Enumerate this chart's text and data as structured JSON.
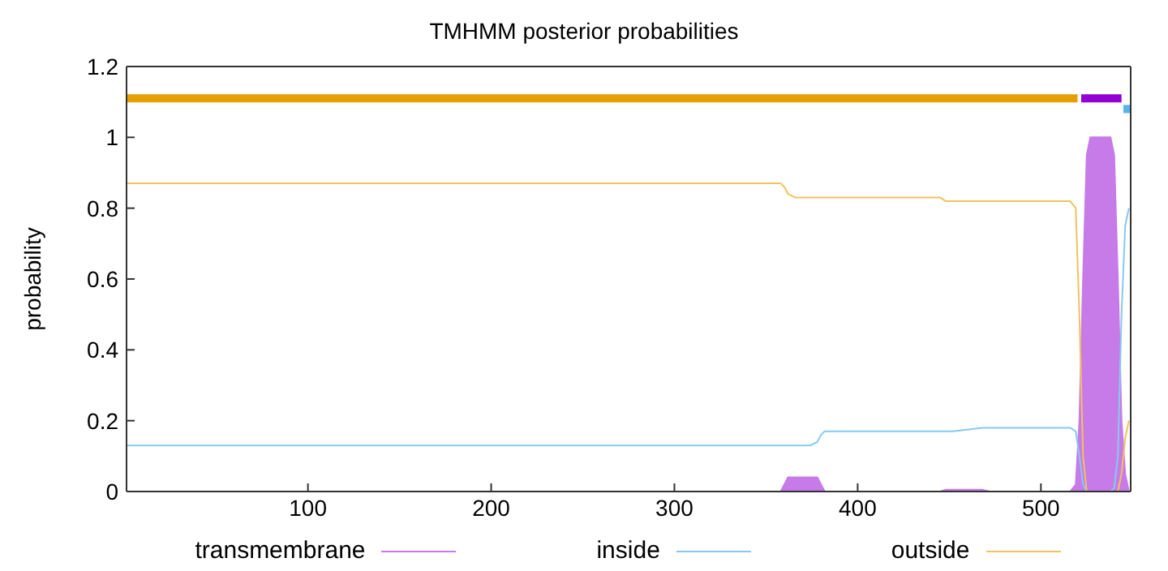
{
  "chart_data": {
    "type": "line",
    "title": "TMHMM posterior probabilities",
    "ylabel": "probability",
    "xlim": [
      1,
      549
    ],
    "xticks": [
      100,
      200,
      300,
      400,
      500
    ],
    "ylim": [
      0,
      1.2
    ],
    "yticks": [
      0,
      0.2,
      0.4,
      0.6,
      0.8,
      1,
      1.2
    ],
    "legend": "bottom",
    "grid": false,
    "x": [
      1,
      358,
      360,
      362,
      366,
      374,
      378,
      380,
      382,
      385,
      445,
      448,
      452,
      468,
      472,
      516,
      519,
      521,
      523,
      525,
      527,
      538,
      540,
      542,
      544,
      546,
      548
    ],
    "series": [
      {
        "name": "transmembrane",
        "type": "area",
        "color": "#c67be8",
        "values": [
          0,
          0,
          0.02,
          0.04,
          0.04,
          0.04,
          0.04,
          0.02,
          0,
          0,
          0,
          0.005,
          0.005,
          0.005,
          0,
          0,
          0.02,
          0.2,
          0.6,
          0.95,
          1,
          1,
          0.95,
          0.6,
          0.2,
          0.05,
          0
        ]
      },
      {
        "name": "inside",
        "color": "#87c9ee",
        "values": [
          0.13,
          0.13,
          0.13,
          0.13,
          0.13,
          0.13,
          0.14,
          0.16,
          0.17,
          0.17,
          0.17,
          0.17,
          0.17,
          0.18,
          0.18,
          0.18,
          0.17,
          0.1,
          0.02,
          0,
          0,
          0,
          0.01,
          0.1,
          0.5,
          0.75,
          0.8
        ]
      },
      {
        "name": "outside",
        "color": "#f2c25c",
        "values": [
          0.87,
          0.87,
          0.86,
          0.84,
          0.83,
          0.83,
          0.83,
          0.83,
          0.83,
          0.83,
          0.83,
          0.82,
          0.82,
          0.82,
          0.82,
          0.82,
          0.8,
          0.5,
          0.1,
          0,
          0,
          0,
          0,
          0,
          0.05,
          0.15,
          0.2
        ]
      },
      {
        "color": "#e69f00",
        "x": [
          1,
          520
        ],
        "values": [
          1.11,
          1.11
        ]
      },
      {
        "color": "#9400d3",
        "x": [
          522,
          544
        ],
        "values": [
          1.11,
          1.11
        ]
      },
      {
        "color": "#56b4e9",
        "x": [
          545,
          549
        ],
        "values": [
          1.08,
          1.08
        ]
      }
    ]
  }
}
